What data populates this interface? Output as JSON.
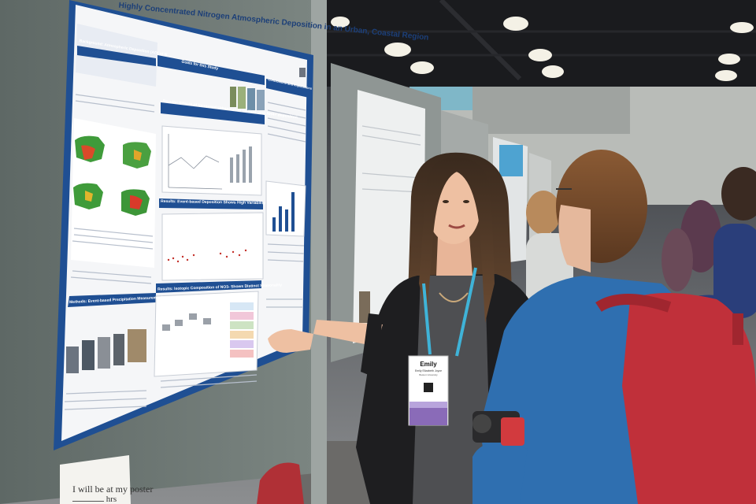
{
  "poster": {
    "title": "Highly Concentrated Nitrogen Atmospheric Deposition in an Urban, Coastal Region",
    "section_background": "Background: Atmospheric Deposition (AD) of N",
    "section_goals": "Goals for this Study",
    "section_methods": "Methods: Event-based Precipitation Measurements",
    "section_results1": "Results: Effects of Increased Urbanization on NO3- and NH4+ deposition",
    "section_results2": "Results: Event-based Deposition Shows High Variability",
    "section_results3": "Results: Isotopic Composition of NO3- Shows Distinct Seasonality",
    "section_conclusions": "Conclusions and Implications"
  },
  "sign": {
    "line1": "I will be at my poster",
    "line2_suffix": "hrs"
  },
  "badge": {
    "first_name": "Emily",
    "full_name": "Emily Elizabeth Joyce",
    "organization": "Boston University"
  },
  "colors": {
    "poster_blue": "#1f4f93",
    "lanyard": "#3fb3d8",
    "jacket_blue": "#2f6fb0",
    "backpack_red": "#c0303a"
  }
}
